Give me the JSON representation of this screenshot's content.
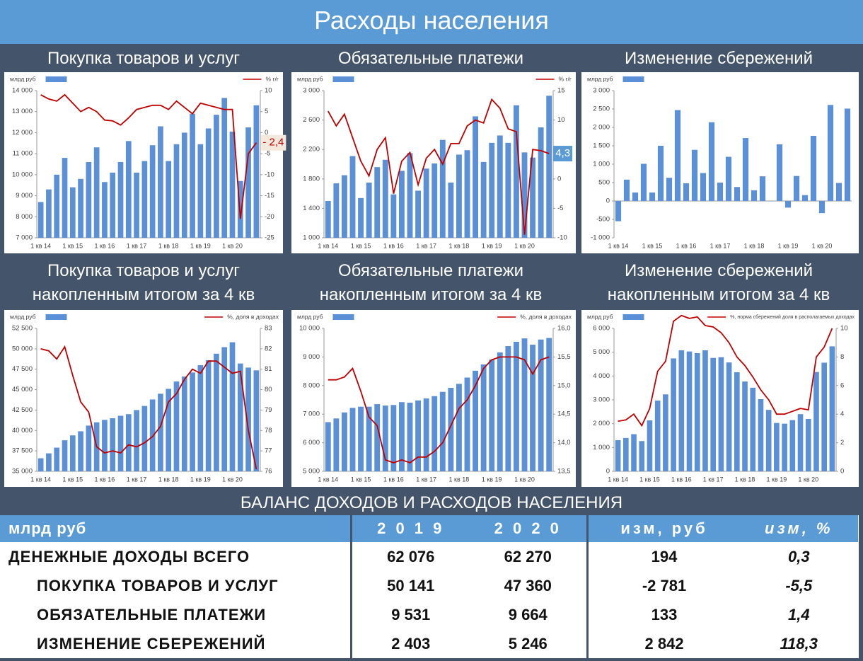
{
  "header": {
    "title": "Расходы населения"
  },
  "chart_data": [
    {
      "type": "bar-line",
      "title": "Покупка товаров и услуг",
      "categories": [
        "1 кв 14",
        null,
        null,
        null,
        "1 кв 15",
        null,
        null,
        null,
        "1 кв 16",
        null,
        null,
        null,
        "1 кв 17",
        null,
        null,
        null,
        "1 кв 18",
        null,
        null,
        null,
        "1 кв 19",
        null,
        null,
        null,
        "1 кв 20",
        null,
        null,
        null
      ],
      "series": [
        {
          "name": "млрд руб",
          "color": "#5b8fd6",
          "values": [
            8700,
            9300,
            10000,
            10800,
            9400,
            9800,
            10600,
            11300,
            9650,
            10100,
            10600,
            11600,
            10100,
            10650,
            11400,
            12300,
            10650,
            11450,
            12000,
            12900,
            11450,
            12200,
            12850,
            13650,
            12050,
            9700,
            12250,
            13300
          ]
        },
        {
          "name": "% г/г",
          "color": "#c00000",
          "axis": "y2",
          "values": [
            9,
            8,
            7.5,
            9,
            7,
            5,
            6,
            5,
            3,
            2.8,
            1.8,
            3.5,
            5.5,
            6,
            6.5,
            6.5,
            5.5,
            7.5,
            6,
            4.5,
            7,
            6.5,
            6,
            5.5,
            5.5,
            -20.5,
            -5,
            -2.4
          ]
        }
      ],
      "annotation": "- 2,4",
      "ylim": [
        7000,
        14000
      ],
      "yticks": [
        {
          "value": 7000,
          "label": "7 000"
        },
        {
          "value": 8000,
          "label": "8 000"
        },
        {
          "value": 9000,
          "label": "9 000"
        },
        {
          "value": 10000,
          "label": "10 000"
        },
        {
          "value": 11000,
          "label": "11 000"
        },
        {
          "value": 12000,
          "label": "12 000"
        },
        {
          "value": 13000,
          "label": "13 000"
        },
        {
          "value": 14000,
          "label": "14 000"
        }
      ],
      "y2lim": [
        -25,
        10
      ],
      "y2ticks": [
        -25,
        -20,
        -15,
        -10,
        -5,
        0,
        5,
        10
      ]
    },
    {
      "type": "bar-line",
      "title": "Обязательные платежи",
      "categories": [
        "1 кв 14",
        null,
        null,
        null,
        "1 кв 15",
        null,
        null,
        null,
        "1 кв 16",
        null,
        null,
        null,
        "1 кв 17",
        null,
        null,
        null,
        "1 кв 18",
        null,
        null,
        null,
        "1 кв 19",
        null,
        null,
        null,
        "1 кв 20",
        null,
        null,
        null
      ],
      "series": [
        {
          "name": "млрд руб",
          "color": "#5b8fd6",
          "values": [
            1500,
            1740,
            1850,
            2110,
            1540,
            1750,
            1960,
            2060,
            1590,
            1910,
            2150,
            1640,
            1940,
            2010,
            2330,
            1750,
            2130,
            2190,
            2650,
            2030,
            2290,
            2390,
            2290,
            2800,
            2160,
            2090,
            2500,
            2930
          ]
        },
        {
          "name": "% г/г",
          "color": "#c00000",
          "axis": "y2",
          "values": [
            11.5,
            9,
            11,
            7,
            3,
            0.5,
            5,
            7,
            -2.5,
            3,
            4.5,
            -1,
            3.5,
            5,
            2.5,
            6,
            6,
            9,
            10,
            9.5,
            13.5,
            12,
            8.5,
            8,
            -9.5,
            5,
            4.8,
            4.3
          ]
        }
      ],
      "annotation": "4,3",
      "ylim": [
        1000,
        3000
      ],
      "yticks": [
        {
          "value": 1000,
          "label": "1 000"
        },
        {
          "value": 1400,
          "label": "1 400"
        },
        {
          "value": 1800,
          "label": "1 800"
        },
        {
          "value": 2200,
          "label": "2 200"
        },
        {
          "value": 2600,
          "label": "2 600"
        },
        {
          "value": 3000,
          "label": "3 000"
        }
      ],
      "y2lim": [
        -10,
        15
      ],
      "y2ticks": [
        -10,
        -5,
        0,
        5,
        10,
        15
      ]
    },
    {
      "type": "bar",
      "title": "Изменение сбережений",
      "categories": [
        "1 кв 14",
        null,
        null,
        null,
        "1 кв 15",
        null,
        null,
        null,
        "1 кв 16",
        null,
        null,
        null,
        "1 кв 17",
        null,
        null,
        null,
        "1 кв 18",
        null,
        null,
        null,
        "1 кв 19",
        null,
        null,
        null,
        "1 кв 20",
        null,
        null,
        null
      ],
      "series": [
        {
          "name": "млрд руб",
          "color": "#5b8fd6",
          "values": [
            -550,
            580,
            230,
            1010,
            230,
            1500,
            630,
            2470,
            480,
            1390,
            760,
            2140,
            500,
            1200,
            380,
            1710,
            290,
            670,
            -10,
            1540,
            -180,
            680,
            160,
            1770,
            -330,
            2610,
            490,
            2510
          ]
        }
      ],
      "ylim": [
        -1000,
        3000
      ],
      "yticks": [
        {
          "value": -1000,
          "label": "-1 000"
        },
        -500,
        0,
        500,
        {
          "value": 1000,
          "label": "1 000"
        },
        {
          "value": 1500,
          "label": "1 500"
        },
        {
          "value": 2000,
          "label": "2 000"
        },
        {
          "value": 2500,
          "label": "2 500"
        },
        {
          "value": 3000,
          "label": "3 000"
        }
      ]
    },
    {
      "type": "bar-line",
      "title": [
        "Покупка товаров и услуг",
        "накопленным итогом за 4 кв"
      ],
      "categories": [
        "1 кв 14",
        null,
        null,
        null,
        "1 кв 15",
        null,
        null,
        null,
        "1 кв 16",
        null,
        null,
        null,
        "1 кв 17",
        null,
        null,
        null,
        "1 кв 18",
        null,
        null,
        null,
        "1 кв 19",
        null,
        null,
        null,
        "1 кв 20",
        null,
        null,
        null
      ],
      "series": [
        {
          "name": "млрд руб",
          "color": "#5b8fd6",
          "values": [
            36600,
            37200,
            37900,
            38800,
            39400,
            39900,
            40600,
            41000,
            41300,
            41500,
            41800,
            42000,
            42500,
            43000,
            43800,
            44500,
            45100,
            46000,
            46600,
            47100,
            48000,
            48600,
            49400,
            50200,
            50800,
            48200,
            47700,
            47360
          ]
        },
        {
          "name": "%, доля в доходах",
          "color": "#c00000",
          "axis": "y2",
          "values": [
            82,
            81.9,
            81.5,
            82.1,
            80.7,
            79.4,
            78.9,
            77.2,
            76.9,
            77,
            76.9,
            77.3,
            77.2,
            77.4,
            77.7,
            78.2,
            79.4,
            79.8,
            80.5,
            81,
            80.8,
            81.4,
            81.4,
            81.1,
            80.8,
            80.9,
            78,
            76.1
          ]
        }
      ],
      "ylim": [
        35000,
        52500
      ],
      "yticks": [
        {
          "value": 35000,
          "label": "35 000"
        },
        {
          "value": 37500,
          "label": "37 500"
        },
        {
          "value": 40000,
          "label": "40 000"
        },
        {
          "value": 42500,
          "label": "42 500"
        },
        {
          "value": 45000,
          "label": "45 000"
        },
        {
          "value": 47500,
          "label": "47 500"
        },
        {
          "value": 50000,
          "label": "50 000"
        },
        {
          "value": 52500,
          "label": "52 500"
        }
      ],
      "y2lim": [
        76,
        83
      ],
      "y2ticks": [
        76,
        77,
        78,
        79,
        80,
        81,
        82,
        83
      ]
    },
    {
      "type": "bar-line",
      "title": [
        "Обязательные платежи",
        "накопленным итогом за 4 кв"
      ],
      "categories": [
        "1 кв 14",
        null,
        null,
        null,
        "1 кв 15",
        null,
        null,
        null,
        "1 кв 16",
        null,
        null,
        null,
        "1 кв 17",
        null,
        null,
        null,
        "1 кв 18",
        null,
        null,
        null,
        "1 кв 19",
        null,
        null,
        null,
        "1 кв 20",
        null,
        null,
        null
      ],
      "series": [
        {
          "name": "млрд руб",
          "color": "#5b8fd6",
          "values": [
            6720,
            6850,
            7060,
            7220,
            7260,
            7260,
            7350,
            7300,
            7320,
            7420,
            7400,
            7480,
            7550,
            7630,
            7780,
            7920,
            8060,
            8280,
            8520,
            8740,
            8910,
            9160,
            9380,
            9530,
            9650,
            9430,
            9610,
            9664
          ]
        },
        {
          "name": "%, доля в доходах",
          "color": "#c00000",
          "axis": "y2",
          "values": [
            15.1,
            15.1,
            15.15,
            15.3,
            14.9,
            14.45,
            14.3,
            13.7,
            13.65,
            13.7,
            13.65,
            13.75,
            13.75,
            13.85,
            14,
            14.3,
            14.6,
            14.75,
            15,
            15.3,
            15.45,
            15.5,
            15.5,
            15.5,
            15.45,
            15.2,
            15.45,
            15.5
          ]
        }
      ],
      "ylim": [
        5000,
        10000
      ],
      "yticks": [
        {
          "value": 5000,
          "label": "5 000"
        },
        {
          "value": 6000,
          "label": "6 000"
        },
        {
          "value": 7000,
          "label": "7 000"
        },
        {
          "value": 8000,
          "label": "8 000"
        },
        {
          "value": 9000,
          "label": "9 000"
        },
        {
          "value": 10000,
          "label": "10 000"
        }
      ],
      "y2lim": [
        13.5,
        16
      ],
      "y2ticks": [
        {
          "value": 13.5,
          "label": "13,5"
        },
        {
          "value": 14,
          "label": "14,0"
        },
        {
          "value": 14.5,
          "label": "14,5"
        },
        {
          "value": 15,
          "label": "15,0"
        },
        {
          "value": 15.5,
          "label": "15,5"
        },
        {
          "value": 16,
          "label": "16,0"
        }
      ]
    },
    {
      "type": "bar-line",
      "title": [
        "Изменение сбережений",
        "накопленным итогом за 4 кв"
      ],
      "categories": [
        "1 кв 14",
        null,
        null,
        null,
        "1 кв 15",
        null,
        null,
        null,
        "1 кв 16",
        null,
        null,
        null,
        "1 кв 17",
        null,
        null,
        null,
        "1 кв 18",
        null,
        null,
        null,
        "1 кв 19",
        null,
        null,
        null,
        "1 кв 20",
        null,
        null,
        null
      ],
      "series": [
        {
          "name": "млрд руб",
          "color": "#5b8fd6",
          "values": [
            1310,
            1400,
            1560,
            1270,
            2140,
            2970,
            3230,
            4740,
            5080,
            5030,
            4960,
            5080,
            4760,
            4790,
            4570,
            4160,
            3770,
            3510,
            3030,
            2580,
            2030,
            2000,
            2150,
            2400,
            2200,
            4170,
            4560,
            5246
          ]
        },
        {
          "name": "%, норма сбережений доля в располагаемых доходах",
          "color": "#c00000",
          "axis": "y2",
          "values": [
            3.5,
            3.6,
            4,
            3.2,
            4.4,
            7,
            7.7,
            10.5,
            10.9,
            10.7,
            10.8,
            10.2,
            10.1,
            9.7,
            9,
            8,
            7.4,
            6.6,
            5.7,
            5,
            4,
            4,
            4.2,
            4.4,
            4.3,
            8,
            8.7,
            10
          ]
        }
      ],
      "ylim": [
        0,
        6000
      ],
      "yticks": [
        0,
        {
          "value": 1000,
          "label": "1 000"
        },
        {
          "value": 2000,
          "label": "2 000"
        },
        {
          "value": 3000,
          "label": "3 000"
        },
        {
          "value": 4000,
          "label": "4 000"
        },
        {
          "value": 5000,
          "label": "5 000"
        },
        {
          "value": 6000,
          "label": "6 000"
        }
      ],
      "y2lim": [
        0,
        10
      ],
      "y2ticks": [
        0,
        2,
        4,
        6,
        8,
        10
      ]
    }
  ],
  "table": {
    "title": "БАЛАНС ДОХОДОВ И РАСХОДОВ НАСЕЛЕНИЯ",
    "header": [
      "млрд руб",
      "2 0 1 9",
      "2 0 2 0",
      "изм, руб",
      "изм, %"
    ],
    "rows": [
      [
        "ДЕНЕЖНЫЕ ДОХОДЫ ВСЕГО",
        "62 076",
        "62 270",
        "194",
        "0,3"
      ],
      [
        "ПОКУПКА ТОВАРОВ И УСЛУГ",
        "50 141",
        "47 360",
        "-2 781",
        "-5,5"
      ],
      [
        "ОБЯЗАТЕЛЬНЫЕ ПЛАТЕЖИ",
        "9 531",
        "9 664",
        "133",
        "1,4"
      ],
      [
        "ИЗМЕНЕНИЕ СБЕРЕЖЕНИЙ",
        "2 403",
        "5 246",
        "2 842",
        "118,3"
      ]
    ]
  }
}
